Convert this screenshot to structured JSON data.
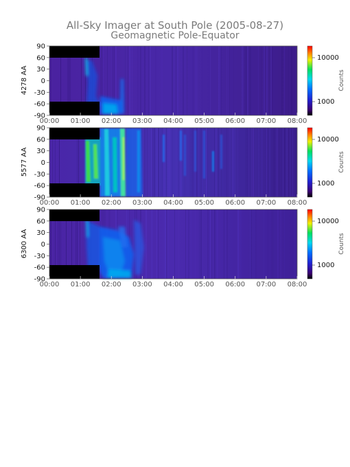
{
  "title_line1": "All-Sky Imager at South Pole (2005-08-27)",
  "title_line2": "Geomagnetic Pole-Equator",
  "chart_data": [
    {
      "type": "heatmap",
      "ylabel": "4278 AA",
      "colorbar_label": "Counts",
      "colorbar_ticks": [
        "10000",
        "1000"
      ],
      "xticks": [
        "00:00",
        "01:00",
        "02:00",
        "03:00",
        "04:00",
        "05:00",
        "06:00",
        "07:00",
        "08:00"
      ],
      "yticks": [
        "90",
        "60",
        "30",
        "0",
        "-30",
        "-60",
        "-90"
      ],
      "xlim_hours": [
        0,
        8
      ],
      "ylim": [
        -90,
        90
      ]
    },
    {
      "type": "heatmap",
      "ylabel": "5577 AA",
      "colorbar_label": "Counts",
      "colorbar_ticks": [
        "10000",
        "1000"
      ],
      "xticks": [
        "00:00",
        "01:00",
        "02:00",
        "03:00",
        "04:00",
        "05:00",
        "06:00",
        "07:00",
        "08:00"
      ],
      "yticks": [
        "90",
        "60",
        "30",
        "0",
        "-30",
        "-60",
        "-90"
      ],
      "xlim_hours": [
        0,
        8
      ],
      "ylim": [
        -90,
        90
      ]
    },
    {
      "type": "heatmap",
      "ylabel": "6300 AA",
      "colorbar_label": "Counts",
      "colorbar_ticks": [
        "10000",
        "1000"
      ],
      "xticks": [
        "00:00",
        "01:00",
        "02:00",
        "03:00",
        "04:00",
        "05:00",
        "06:00",
        "07:00",
        "08:00"
      ],
      "yticks": [
        "90",
        "60",
        "30",
        "0",
        "-30",
        "-60",
        "-90"
      ],
      "xlim_hours": [
        0,
        8
      ],
      "ylim": [
        -90,
        90
      ]
    }
  ]
}
